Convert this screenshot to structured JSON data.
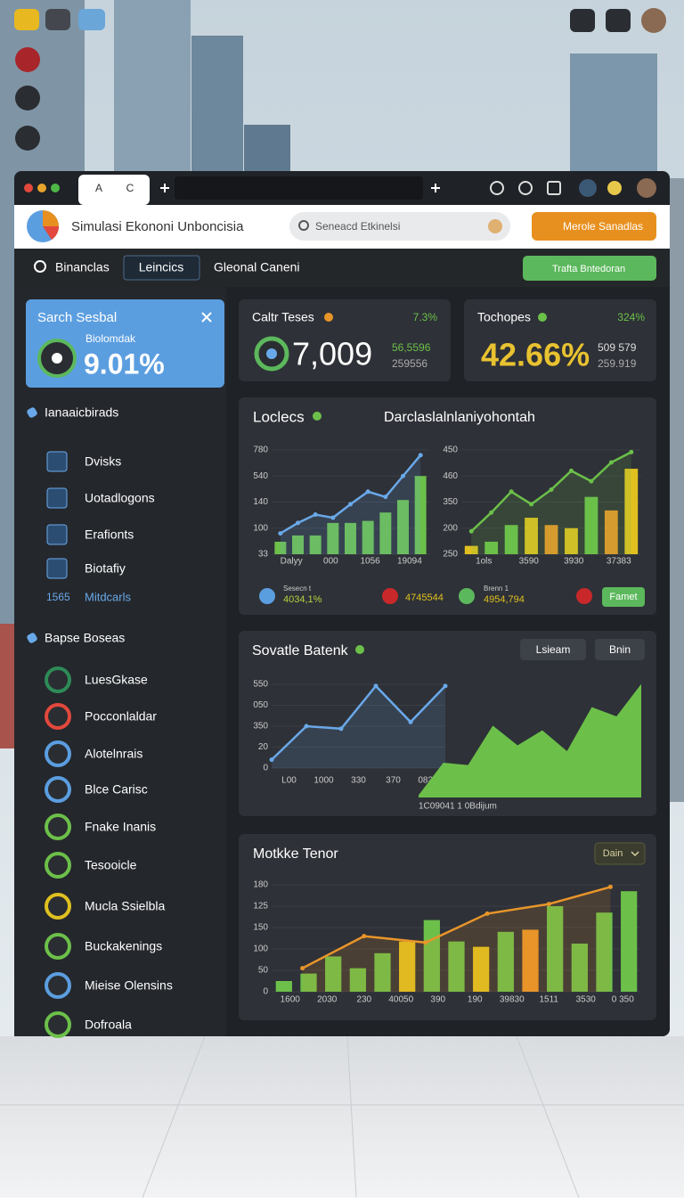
{
  "tab_icons": [
    "A",
    "C"
  ],
  "header": {
    "title": "Simulasi Ekononi Unboncisia",
    "search": "Seneacd Etkinelsi",
    "button": "Merole Sanadlas"
  },
  "nav": {
    "items": [
      "Binanclas",
      "Leincics",
      "Gleonal Caneni"
    ],
    "button": "Trafta Bntedoran"
  },
  "sidebar": {
    "card": {
      "title": "Sarch Sesbal",
      "label": "Biolomdak",
      "value": "9.01%"
    },
    "sections": [
      {
        "title": "Ianaaicbirads",
        "items": [
          "Dvisks",
          "Uotadlogons",
          "Erafionts",
          "Biotafiy"
        ],
        "extra": {
          "number": "1565",
          "label": "Mitdcarls"
        }
      },
      {
        "title": "Bapse Boseas",
        "items": [
          "LuesGkase",
          "Pocconlaldar",
          "Alotelnrais",
          "Blce Carisc",
          "Fnake Inanis",
          "Tesooicle",
          "Mucla Ssielbla",
          "Buckakenings",
          "Mieise Olensins",
          "Dofroala"
        ]
      }
    ]
  },
  "stats": [
    {
      "title": "Caltr Teses",
      "change": "7.3%",
      "value": "7,009",
      "sub": [
        "56,5596",
        "259556"
      ]
    },
    {
      "title": "Tochopes",
      "change": "324%",
      "value": "42.66%",
      "sub": [
        "509 579",
        "259.919"
      ]
    }
  ],
  "panels": [
    {
      "title": "Loclecs",
      "subtitle": "Darclaslalnlaniyohontah",
      "legend": [
        {
          "label": "Sesecn t",
          "value": "4034,1%"
        },
        {
          "value": "4745544"
        },
        {
          "label": "Brenn 1",
          "value": "4954,794"
        }
      ],
      "button": "Famet"
    },
    {
      "title": "Sovatle Batenk",
      "buttons": [
        "Lsieam",
        "Bnin"
      ],
      "caption": "1C09041 1 0Bdijum"
    },
    {
      "title": "Motkke Tenor",
      "dropdown": "Dain"
    }
  ],
  "chart_data": [
    {
      "type": "bar",
      "ylim": [
        0,
        100
      ],
      "y_labels": [
        "780",
        "540",
        "140",
        "100",
        "33"
      ],
      "x_labels": [
        "Dalyy",
        "000",
        "1056",
        "19094"
      ],
      "series": [
        {
          "type": "bar",
          "values": [
            12,
            18,
            18,
            30,
            30,
            32,
            40,
            52,
            75
          ],
          "colors": [
            "#6cc04a",
            "#6cc04a",
            "#6cc04a",
            "#6cc04a",
            "#6cc04a",
            "#6cc04a",
            "#6cc04a",
            "#6cc04a",
            "#6cc04a"
          ]
        },
        {
          "type": "line",
          "color": "#6aa9e9",
          "values": [
            20,
            30,
            38,
            35,
            48,
            60,
            55,
            75,
            95
          ]
        }
      ]
    },
    {
      "type": "bar",
      "ylim": [
        0,
        100
      ],
      "y_labels": [
        "450",
        "460",
        "350",
        "200",
        "250"
      ],
      "x_labels": [
        "1ols",
        "3590",
        "3930",
        "37383"
      ],
      "series": [
        {
          "type": "bar",
          "values": [
            8,
            12,
            28,
            35,
            28,
            25,
            55,
            42,
            82
          ],
          "colors": [
            "#e0c020",
            "#6cc04a",
            "#6cc04a",
            "#e0c020",
            "#e8952a",
            "#e0c020",
            "#6cc04a",
            "#e8952a",
            "#e0c020"
          ]
        },
        {
          "type": "line",
          "color": "#6cc04a",
          "values": [
            22,
            40,
            60,
            48,
            62,
            80,
            70,
            88,
            98
          ]
        }
      ]
    },
    {
      "type": "line",
      "ylim": [
        0,
        100
      ],
      "y_labels": [
        "550",
        "050",
        "350",
        "20",
        "0"
      ],
      "x_labels": [
        "L00",
        "1000",
        "330",
        "370",
        "0830"
      ],
      "series": [
        {
          "type": "line",
          "color": "#6aa9e9",
          "values": [
            10,
            50,
            47,
            98,
            55,
            98
          ]
        }
      ]
    },
    {
      "type": "area",
      "ylim": [
        0,
        100
      ],
      "series": [
        {
          "type": "area",
          "color": "#6cc04a",
          "values": [
            2,
            30,
            28,
            62,
            45,
            58,
            40,
            78,
            70,
            98
          ]
        }
      ]
    },
    {
      "type": "bar",
      "ylim": [
        0,
        100
      ],
      "y_labels": [
        "180",
        "125",
        "150",
        "100",
        "50",
        "0"
      ],
      "x_labels": [
        "1600",
        "2030",
        "230",
        "40050",
        "390",
        "190",
        "39830",
        "1511",
        "3530",
        "0 350"
      ],
      "series": [
        {
          "type": "bar",
          "values": [
            10,
            17,
            33,
            22,
            36,
            47,
            67,
            47,
            42,
            56,
            58,
            80,
            45,
            74,
            94
          ],
          "colors": [
            "#6cc04a",
            "#6cc04a",
            "#6cc04a",
            "#6cc04a",
            "#6cc04a",
            "#e0c020",
            "#6cc04a",
            "#6cc04a",
            "#e0c020",
            "#6cc04a",
            "#e8952a",
            "#6cc04a",
            "#6cc04a",
            "#6cc04a",
            "#6cc04a"
          ]
        },
        {
          "type": "line",
          "color": "#e8952a",
          "values": [
            22,
            52,
            46,
            73,
            82,
            98
          ]
        }
      ]
    }
  ]
}
